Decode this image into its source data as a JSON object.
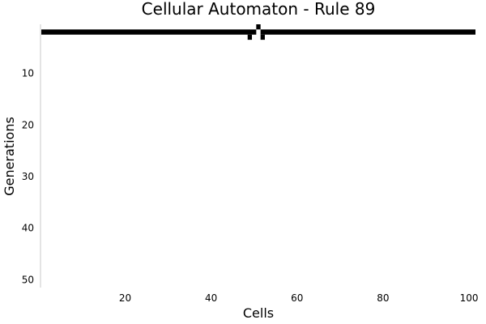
{
  "chart_data": {
    "type": "heatmap",
    "title": "Cellular Automaton - Rule 89",
    "xlabel": "Cells",
    "ylabel": "Generations",
    "xlim": [
      1,
      101
    ],
    "ylim": [
      51,
      1
    ],
    "x_ticks": [
      "20",
      "40",
      "60",
      "80",
      "100"
    ],
    "y_ticks": [
      "10",
      "20",
      "30",
      "40",
      "50"
    ],
    "grid": false,
    "colors": {
      "alive": "#000000",
      "dead": "#ffffff"
    },
    "generations": [
      {
        "generation": 1,
        "alive_ranges": [
          [
            51,
            51
          ]
        ]
      },
      {
        "generation": 2,
        "alive_ranges": [
          [
            1,
            50
          ],
          [
            52,
            101
          ]
        ]
      },
      {
        "generation": 3,
        "alive_ranges": [
          [
            49,
            49
          ],
          [
            52,
            52
          ]
        ]
      }
    ]
  }
}
